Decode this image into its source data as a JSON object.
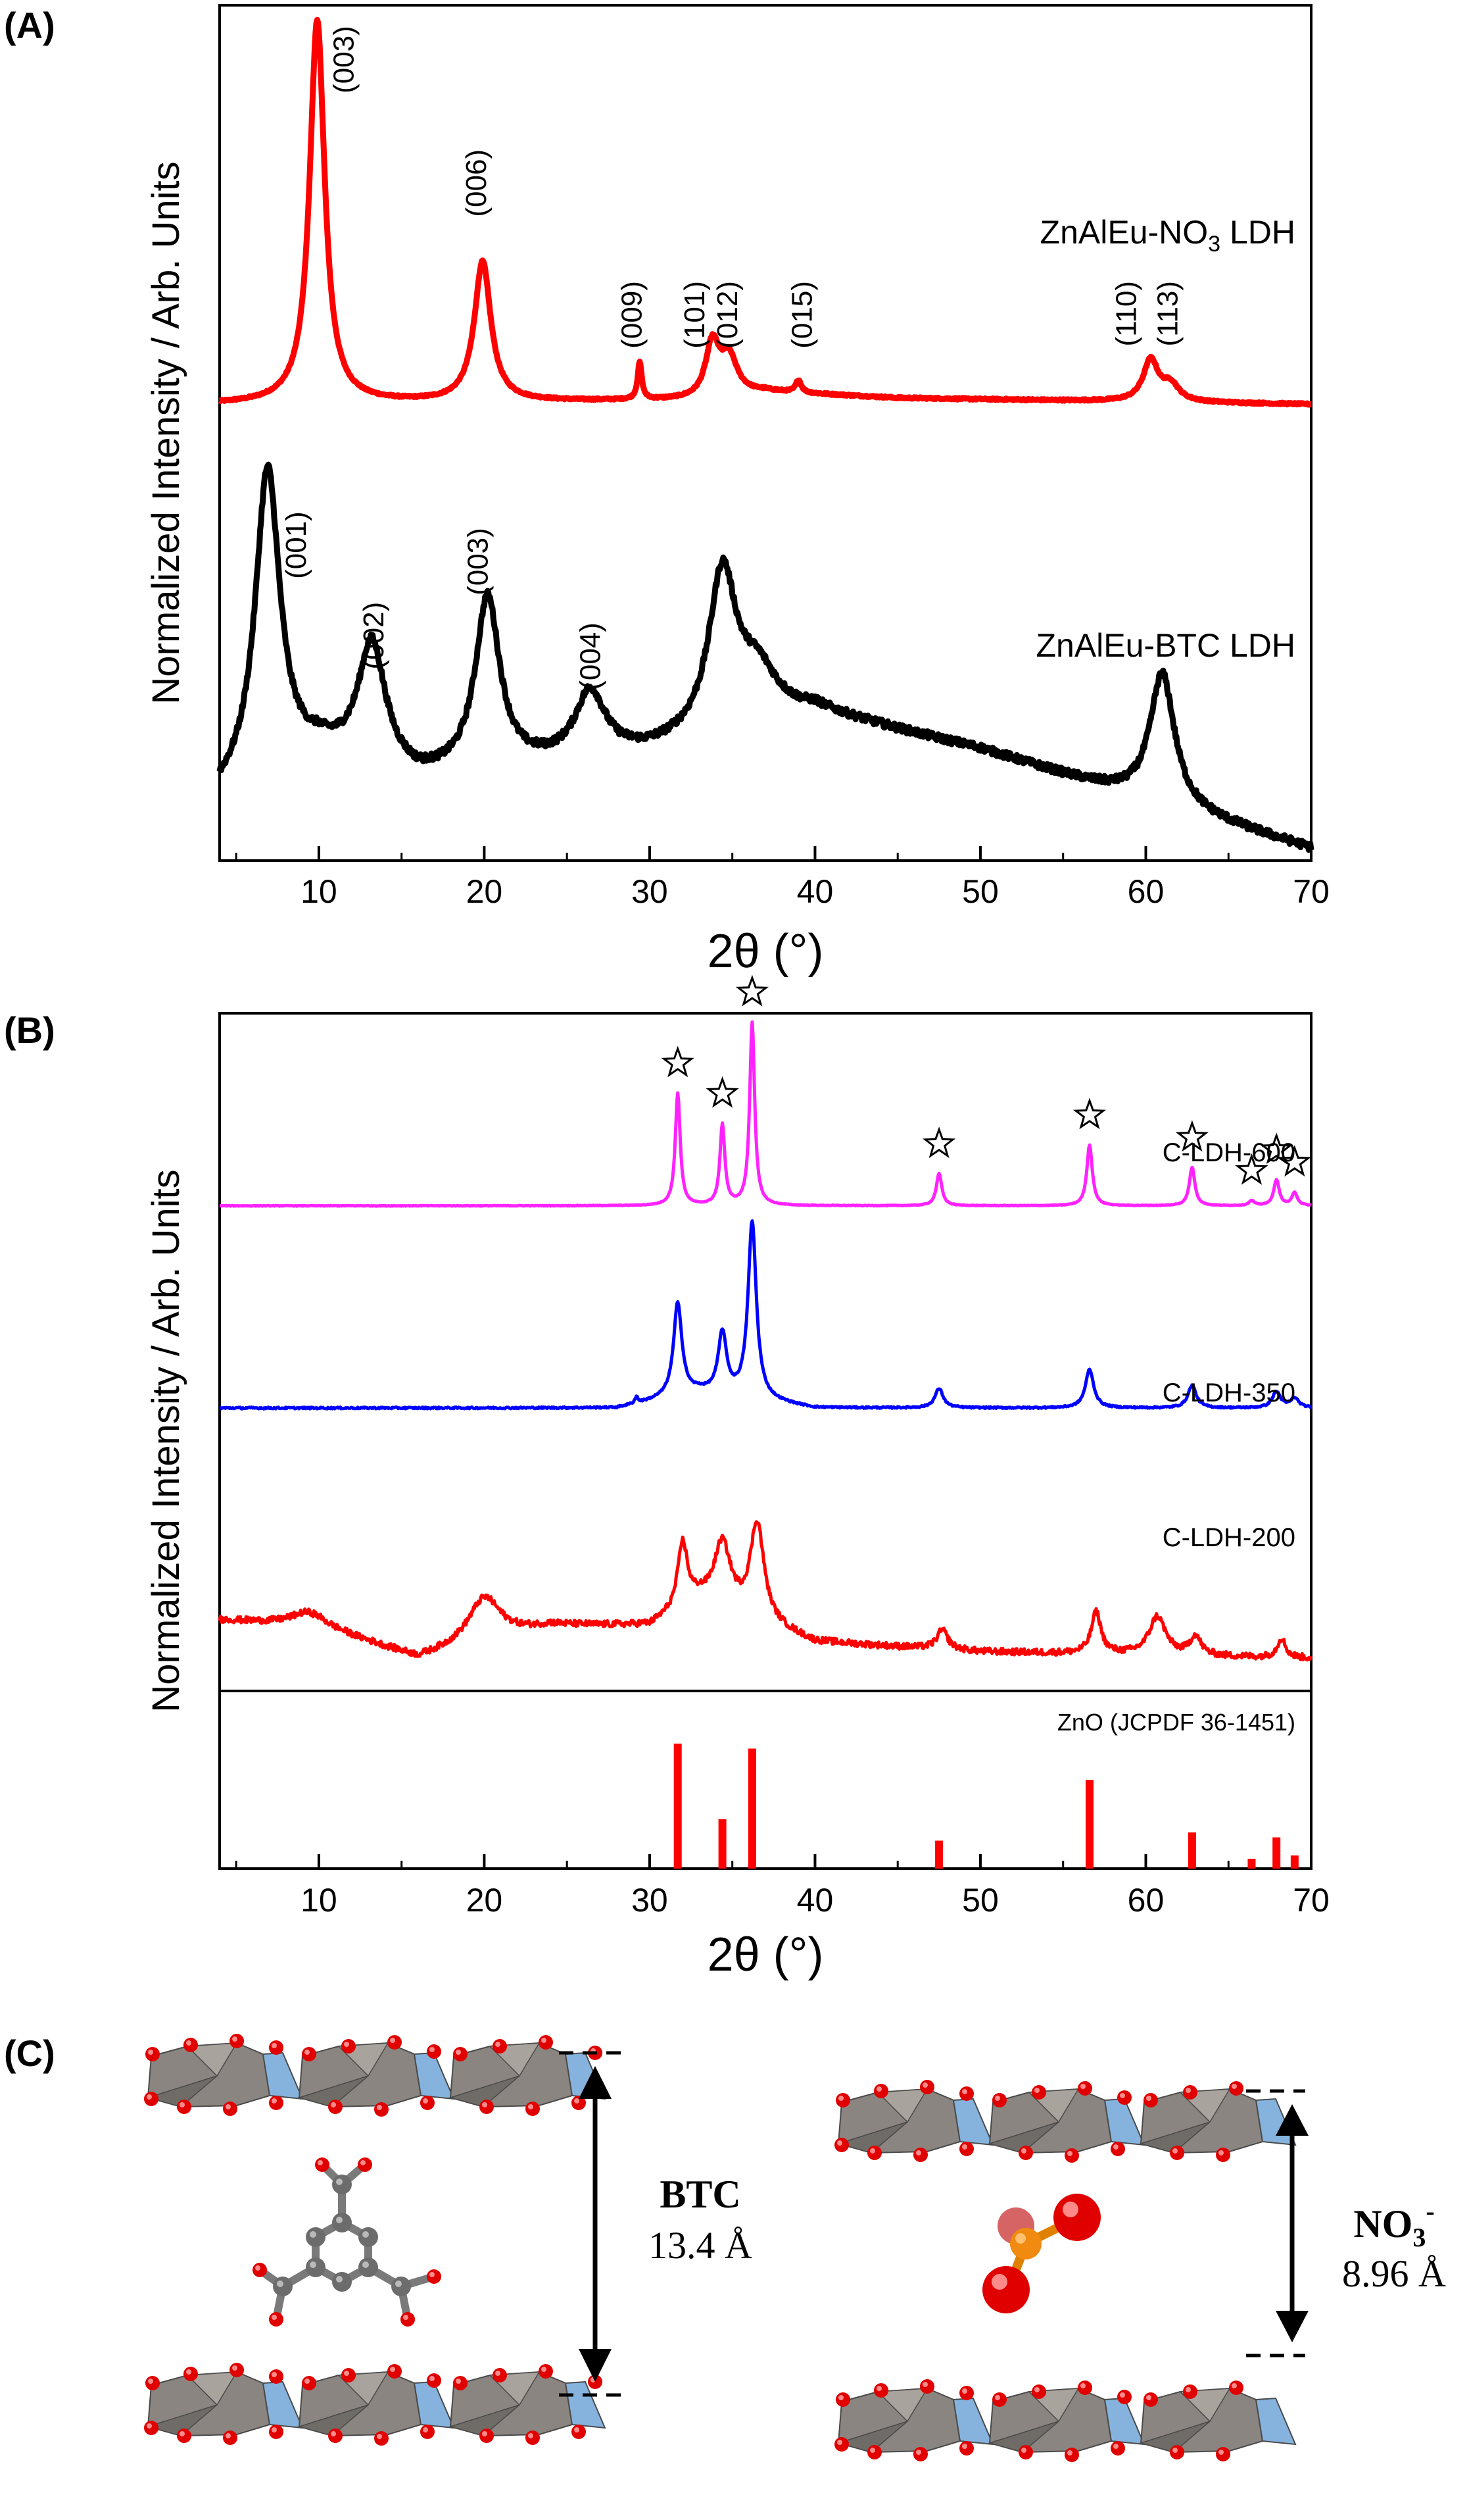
{
  "chart_data": [
    {
      "panel": "(A)",
      "type": "line",
      "xlabel": "2θ (°)",
      "ylabel": "Normalized Intensity / Arb. Units",
      "xlim": [
        4,
        70
      ],
      "ylim": [
        0,
        2.05
      ],
      "xticks": [
        10,
        20,
        30,
        40,
        50,
        60,
        70
      ],
      "series": [
        {
          "name": "ZnAlEu-NO3 LDH",
          "label_main": "ZnAlEu-NO",
          "label_sub": "3",
          "label_end": " LDH",
          "color": "#ff0000",
          "baseline": 1.08,
          "noise": 0.004,
          "peaks": [
            {
              "x": 9.9,
              "h": 0.93,
              "w": 0.55
            },
            {
              "x": 19.9,
              "h": 0.34,
              "w": 0.6
            },
            {
              "x": 29.4,
              "h": 0.09,
              "w": 0.15
            },
            {
              "x": 33.8,
              "h": 0.13,
              "w": 0.5
            },
            {
              "x": 34.8,
              "h": 0.09,
              "w": 0.6
            },
            {
              "x": 39.0,
              "h": 0.03,
              "w": 0.2
            },
            {
              "x": 60.3,
              "h": 0.1,
              "w": 0.55
            },
            {
              "x": 61.5,
              "h": 0.04,
              "w": 0.6
            }
          ],
          "background": [
            {
              "x": 4,
              "y": 0.0
            },
            {
              "x": 33,
              "y": 0.01
            },
            {
              "x": 37,
              "y": 0.03
            },
            {
              "x": 45,
              "y": 0.015
            },
            {
              "x": 70,
              "y": 0.0
            }
          ]
        },
        {
          "name": "ZnAlEu-BTC LDH",
          "color": "#000000",
          "baseline": 0.0,
          "noise": 0.018,
          "peaks": [
            {
              "x": 6.9,
              "h": 0.75,
              "w": 0.9
            },
            {
              "x": 13.2,
              "h": 0.3,
              "w": 1.0
            },
            {
              "x": 20.2,
              "h": 0.42,
              "w": 0.9
            },
            {
              "x": 26.4,
              "h": 0.16,
              "w": 1.1
            },
            {
              "x": 34.4,
              "h": 0.38,
              "w": 1.0
            },
            {
              "x": 36.5,
              "h": 0.12,
              "w": 1.5
            },
            {
              "x": 61.0,
              "h": 0.32,
              "w": 0.9
            }
          ],
          "background": [
            {
              "x": 4,
              "y": 0.12
            },
            {
              "x": 10,
              "y": 0.22
            },
            {
              "x": 16,
              "y": 0.16
            },
            {
              "x": 30,
              "y": 0.23
            },
            {
              "x": 40,
              "y": 0.33
            },
            {
              "x": 50,
              "y": 0.24
            },
            {
              "x": 58,
              "y": 0.14
            },
            {
              "x": 70,
              "y": 0.0
            }
          ]
        }
      ],
      "peak_labels": [
        {
          "text": "(003)",
          "x": 12.1,
          "y": 2.0
        },
        {
          "text": "(006)",
          "x": 20.1,
          "y": 1.7
        },
        {
          "text": "(009)",
          "x": 29.5,
          "y": 1.38
        },
        {
          "text": "(101)",
          "x": 33.3,
          "y": 1.38
        },
        {
          "text": "(012)",
          "x": 35.3,
          "y": 1.38
        },
        {
          "text": "(015)",
          "x": 39.8,
          "y": 1.38
        },
        {
          "text": "(110)",
          "x": 59.4,
          "y": 1.38
        },
        {
          "text": "(113)",
          "x": 61.9,
          "y": 1.38
        },
        {
          "text": "(001)",
          "x": 9.2,
          "y": 0.82
        },
        {
          "text": "(002)",
          "x": 13.9,
          "y": 0.6
        },
        {
          "text": "(003)",
          "x": 20.2,
          "y": 0.78
        },
        {
          "text": "(004)",
          "x": 27.0,
          "y": 0.55
        }
      ]
    },
    {
      "panel": "(B)",
      "type": "line",
      "xlabel": "2θ (°)",
      "ylabel": "Normalized Intensity / Arb. Units",
      "xlim": [
        4,
        70
      ],
      "ylim": [
        0,
        2.05
      ],
      "xticks": [
        10,
        20,
        30,
        40,
        50,
        60,
        70
      ],
      "series": [
        {
          "name": "C-LDH-600",
          "color": "#ff22ff",
          "baseline": 1.45,
          "noise": 0.002,
          "peaks": [
            {
              "x": 31.7,
              "h": 0.35,
              "w": 0.18
            },
            {
              "x": 34.4,
              "h": 0.25,
              "w": 0.18
            },
            {
              "x": 36.2,
              "h": 0.57,
              "w": 0.18
            },
            {
              "x": 47.5,
              "h": 0.1,
              "w": 0.2
            },
            {
              "x": 56.6,
              "h": 0.19,
              "w": 0.2
            },
            {
              "x": 62.8,
              "h": 0.12,
              "w": 0.2
            },
            {
              "x": 66.4,
              "h": 0.015,
              "w": 0.2
            },
            {
              "x": 67.9,
              "h": 0.08,
              "w": 0.2
            },
            {
              "x": 69.0,
              "h": 0.04,
              "w": 0.2
            }
          ],
          "background": [
            {
              "x": 4,
              "y": 0.0
            },
            {
              "x": 70,
              "y": 0.0
            }
          ]
        },
        {
          "name": "C-LDH-350",
          "color": "#0000ff",
          "baseline": 0.82,
          "noise": 0.005,
          "peaks": [
            {
              "x": 29.2,
              "h": 0.02,
              "w": 0.1
            },
            {
              "x": 31.7,
              "h": 0.29,
              "w": 0.3
            },
            {
              "x": 34.4,
              "h": 0.19,
              "w": 0.3
            },
            {
              "x": 36.2,
              "h": 0.55,
              "w": 0.3
            },
            {
              "x": 47.5,
              "h": 0.06,
              "w": 0.3
            },
            {
              "x": 56.6,
              "h": 0.12,
              "w": 0.3
            },
            {
              "x": 62.8,
              "h": 0.07,
              "w": 0.3
            },
            {
              "x": 67.9,
              "h": 0.05,
              "w": 0.3
            },
            {
              "x": 69.0,
              "h": 0.03,
              "w": 0.3
            }
          ],
          "background": [
            {
              "x": 4,
              "y": 0.0
            },
            {
              "x": 28,
              "y": 0.0
            },
            {
              "x": 33,
              "y": 0.05
            },
            {
              "x": 40,
              "y": 0.0
            },
            {
              "x": 70,
              "y": 0.0
            }
          ]
        },
        {
          "name": "C-LDH-200",
          "color": "#ff0000",
          "baseline": 0.04,
          "noise": 0.02,
          "peaks": [
            {
              "x": 9.3,
              "h": 0.04,
              "w": 1.2
            },
            {
              "x": 20.0,
              "h": 0.14,
              "w": 1.2
            },
            {
              "x": 32.0,
              "h": 0.2,
              "w": 0.35
            },
            {
              "x": 34.4,
              "h": 0.2,
              "w": 0.6
            },
            {
              "x": 36.5,
              "h": 0.3,
              "w": 0.5
            },
            {
              "x": 47.7,
              "h": 0.06,
              "w": 0.4
            },
            {
              "x": 57.0,
              "h": 0.13,
              "w": 0.35
            },
            {
              "x": 60.7,
              "h": 0.12,
              "w": 0.6
            },
            {
              "x": 63.0,
              "h": 0.06,
              "w": 0.4
            },
            {
              "x": 68.2,
              "h": 0.06,
              "w": 0.3
            }
          ],
          "background": [
            {
              "x": 4,
              "y": 0.12
            },
            {
              "x": 10,
              "y": 0.1
            },
            {
              "x": 16,
              "y": 0.0
            },
            {
              "x": 24,
              "y": 0.1
            },
            {
              "x": 30,
              "y": 0.1
            },
            {
              "x": 33,
              "y": 0.18
            },
            {
              "x": 40,
              "y": 0.05
            },
            {
              "x": 50,
              "y": 0.02
            },
            {
              "x": 70,
              "y": 0.0
            }
          ]
        }
      ],
      "star_markers": [
        31.7,
        34.4,
        36.2,
        47.5,
        56.6,
        62.8,
        66.4,
        67.9,
        69.0
      ],
      "reference": {
        "label": "ZnO (JCPDF 36-1451)",
        "color": "#ff0000",
        "sticks": [
          {
            "x": 31.7,
            "h": 0.76
          },
          {
            "x": 34.4,
            "h": 0.3
          },
          {
            "x": 36.2,
            "h": 0.73
          },
          {
            "x": 47.5,
            "h": 0.17
          },
          {
            "x": 56.6,
            "h": 0.54
          },
          {
            "x": 62.8,
            "h": 0.22
          },
          {
            "x": 66.4,
            "h": 0.06
          },
          {
            "x": 67.9,
            "h": 0.19
          },
          {
            "x": 69.0,
            "h": 0.08
          }
        ]
      }
    }
  ],
  "schematic": {
    "panel": "(C)",
    "left": {
      "anion": "BTC",
      "spacing": "13.4 Å"
    },
    "right": {
      "anion_main": "NO",
      "anion_sub": "3",
      "anion_sup": "-",
      "spacing": "8.96 Å"
    }
  }
}
